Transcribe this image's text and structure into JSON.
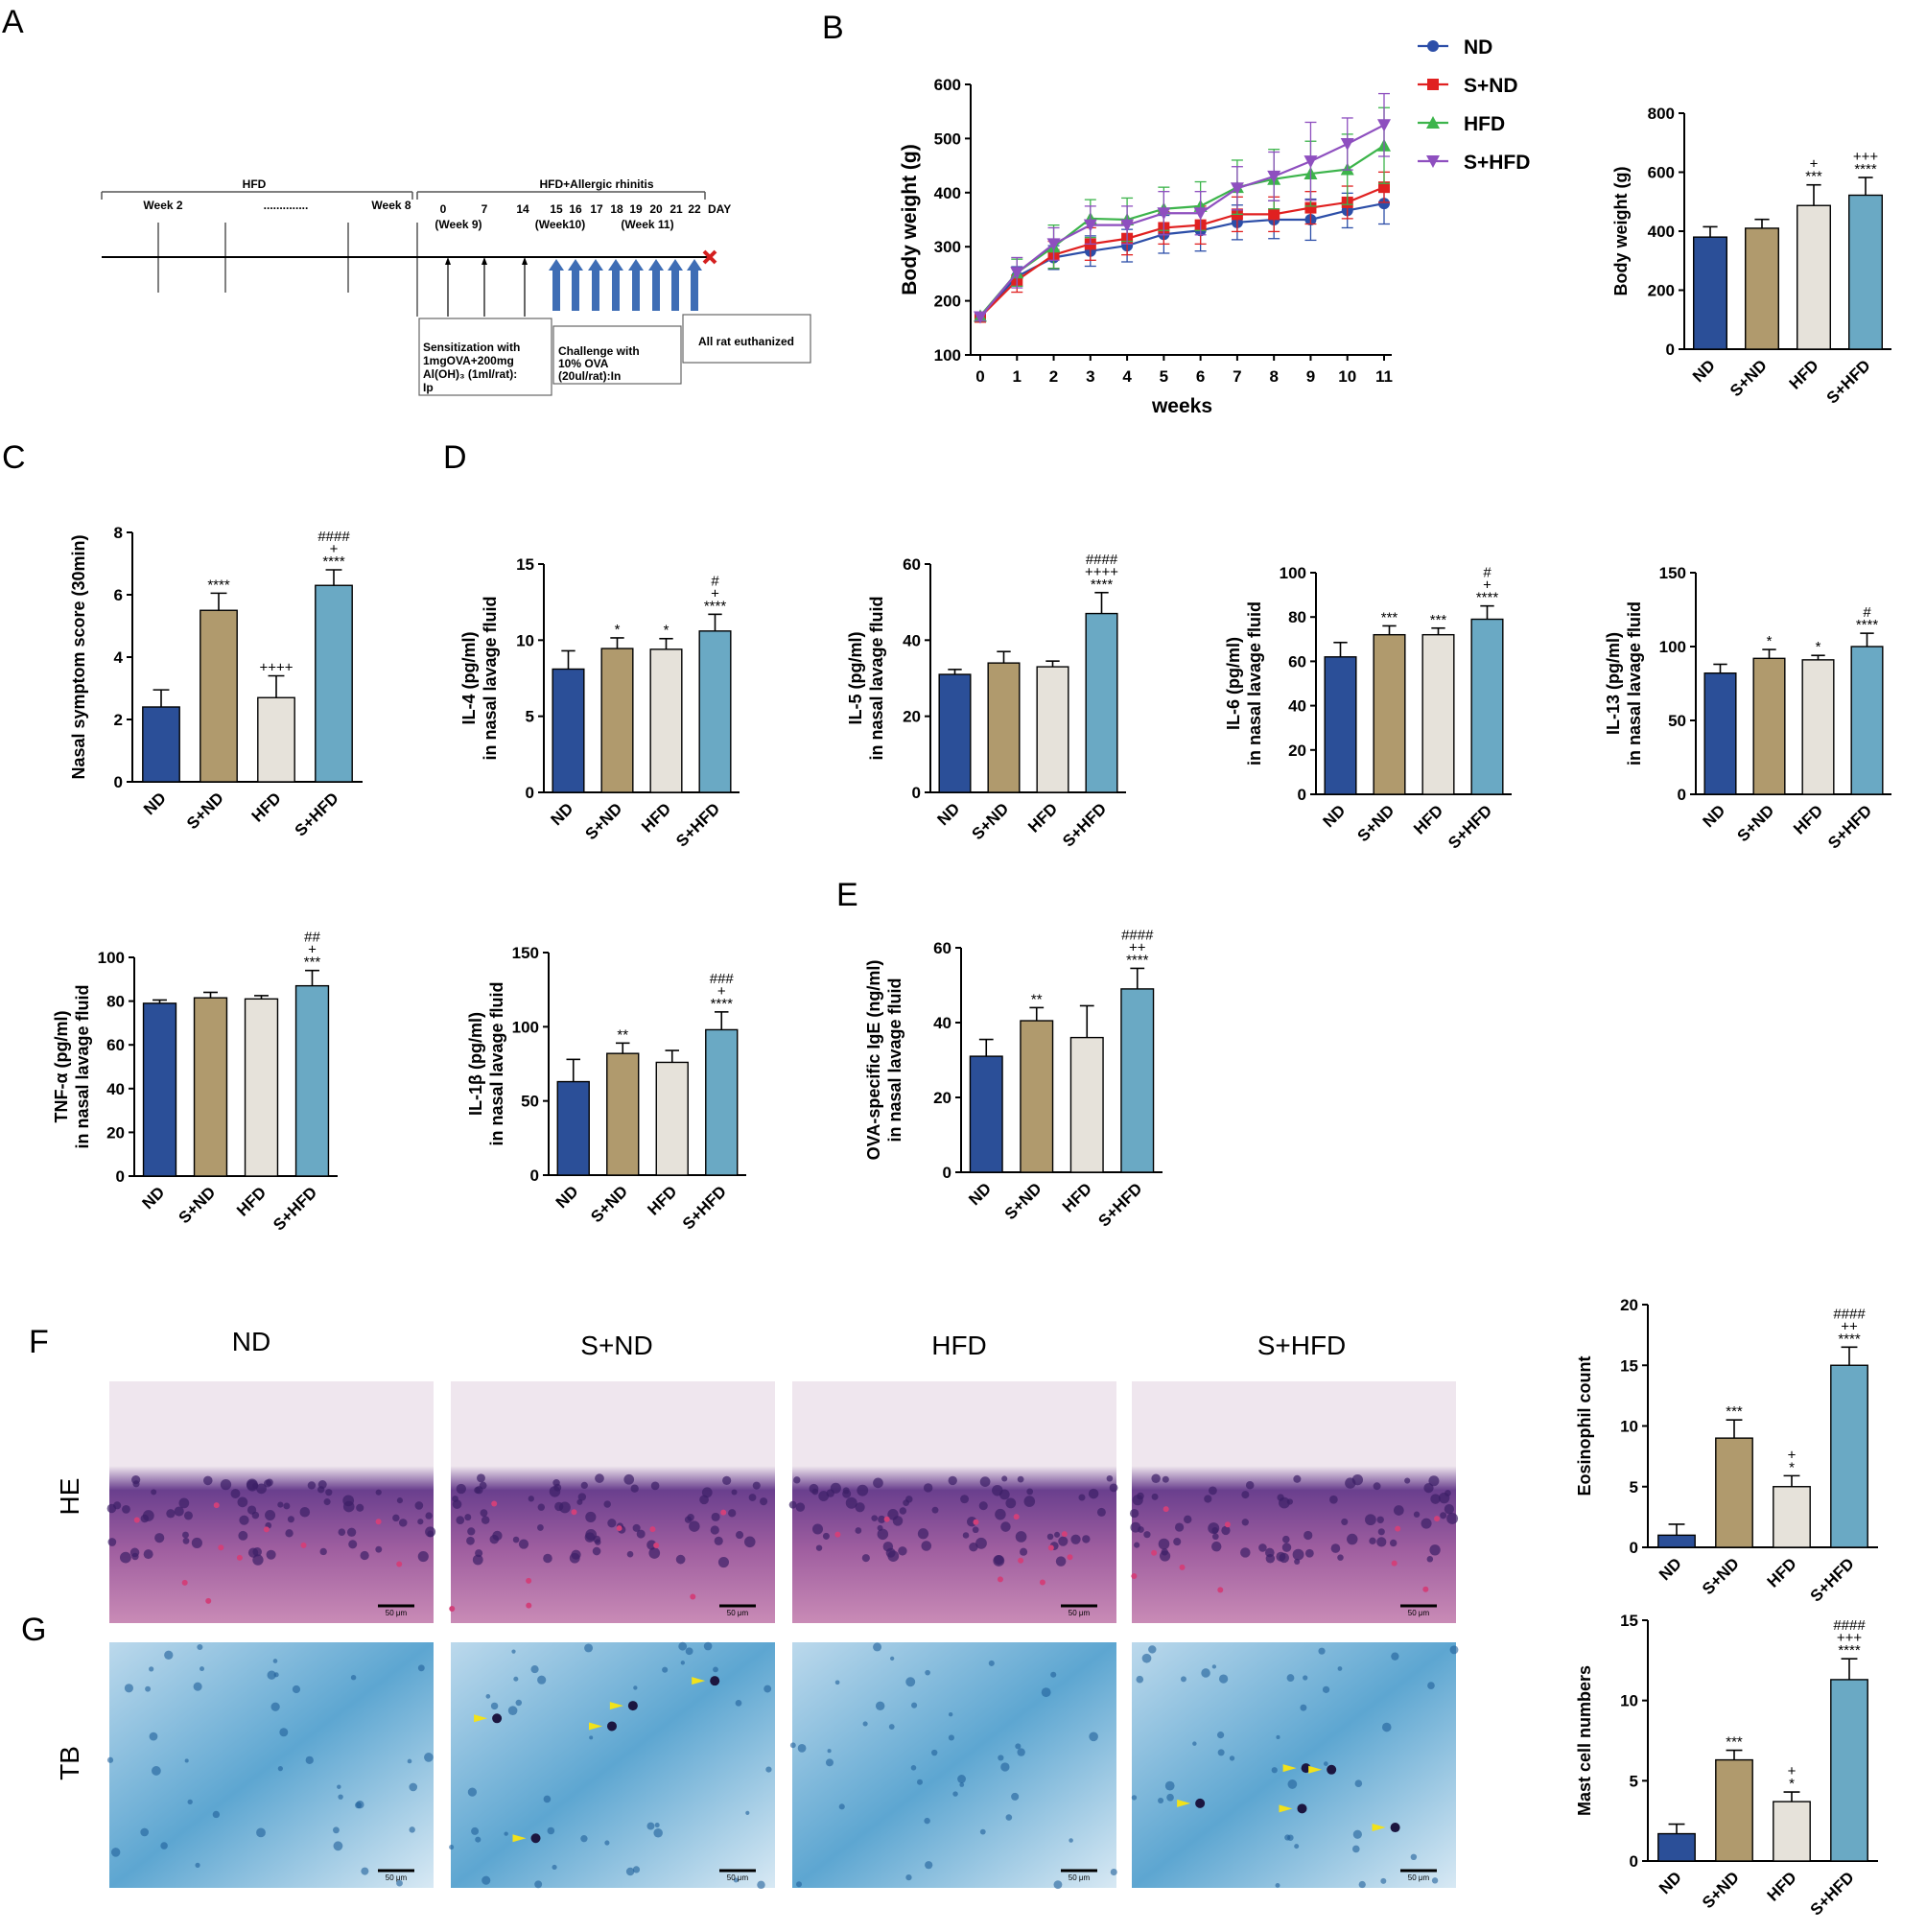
{
  "panel_labels": [
    "A",
    "B",
    "C",
    "D",
    "E",
    "F",
    "G"
  ],
  "colors": {
    "ND": "#2b4f98",
    "S+ND": "#b09a6d",
    "HFD": "#e6e2da",
    "S+HFD": "#6aa9c4",
    "line_ND": "#2c4ea8",
    "line_SND": "#e02020",
    "line_HFD": "#3cb44b",
    "line_SHFD": "#8e4fbf"
  },
  "timeline": {
    "hfd_label": "HFD",
    "hfd_allergic_label": "HFD+Allergic rhinitis",
    "week_labels": [
      "Week 2",
      "..............",
      "Week 8"
    ],
    "day_labels": [
      "0",
      "7",
      "14",
      "15",
      "16",
      "17",
      "18",
      "19",
      "20",
      "21",
      "22"
    ],
    "day_unit": "DAY",
    "period_labels": [
      "(Week 9)",
      "(Week10)",
      "(Week 11)"
    ],
    "sensitization_lines": [
      "Sensitization with",
      "1mgOVA+200mg",
      "Al(OH)₃   (1ml/rat):",
      "Ip"
    ],
    "challenge_lines": [
      "Challenge with",
      "10% OVA",
      "(20ul/rat):In"
    ],
    "euthanize_label": "All rat euthanized"
  },
  "chart_data": [
    {
      "id": "B_line",
      "type": "line",
      "xlabel": "weeks",
      "ylabel": "Body weight (g)",
      "x": [
        0,
        1,
        2,
        3,
        4,
        5,
        6,
        7,
        8,
        9,
        10,
        11
      ],
      "ylim": [
        100,
        600
      ],
      "yticks": [
        100,
        200,
        300,
        400,
        500,
        600
      ],
      "series": [
        {
          "name": "ND",
          "values": [
            170,
            245,
            280,
            292,
            302,
            323,
            330,
            345,
            350,
            350,
            367,
            380
          ],
          "err": [
            7,
            18,
            22,
            28,
            30,
            35,
            38,
            32,
            35,
            38,
            32,
            38
          ]
        },
        {
          "name": "S+ND",
          "values": [
            170,
            238,
            285,
            305,
            315,
            335,
            340,
            360,
            360,
            372,
            382,
            410
          ],
          "err": [
            7,
            22,
            25,
            30,
            30,
            30,
            35,
            32,
            32,
            30,
            30,
            28
          ]
        },
        {
          "name": "HFD",
          "values": [
            172,
            252,
            300,
            352,
            350,
            370,
            375,
            410,
            425,
            435,
            443,
            487
          ],
          "err": [
            7,
            25,
            40,
            35,
            40,
            40,
            45,
            50,
            55,
            60,
            65,
            70
          ]
        },
        {
          "name": "S+HFD",
          "values": [
            170,
            252,
            305,
            340,
            340,
            362,
            362,
            408,
            430,
            458,
            490,
            525
          ],
          "err": [
            7,
            28,
            30,
            35,
            35,
            40,
            40,
            40,
            45,
            72,
            48,
            58
          ]
        }
      ]
    },
    {
      "id": "B_bar",
      "type": "bar",
      "ylabel": "Body weight (g)",
      "categories": [
        "ND",
        "S+ND",
        "HFD",
        "S+HFD"
      ],
      "values": [
        380,
        410,
        487,
        522
      ],
      "err": [
        35,
        30,
        70,
        60
      ],
      "ylim": [
        0,
        800
      ],
      "yticks": [
        0,
        200,
        400,
        600,
        800
      ],
      "sig": [
        [],
        [],
        [
          "+",
          "***"
        ],
        [
          "+++",
          "****"
        ]
      ]
    },
    {
      "id": "C_bar",
      "type": "bar",
      "ylabel": "Nasal symptom score (30min)",
      "categories": [
        "ND",
        "S+ND",
        "HFD",
        "S+HFD"
      ],
      "values": [
        2.4,
        5.5,
        2.7,
        6.3
      ],
      "err": [
        0.55,
        0.55,
        0.7,
        0.5
      ],
      "ylim": [
        0,
        8
      ],
      "yticks": [
        0,
        2,
        4,
        6,
        8
      ],
      "sig": [
        [],
        [
          "****"
        ],
        [
          "++++"
        ],
        [
          "####",
          "+",
          "****"
        ]
      ]
    },
    {
      "id": "D_IL4",
      "type": "bar",
      "ylabel_lines": [
        "IL-4 (pg/ml)",
        "in nasal lavage fluid"
      ],
      "categories": [
        "ND",
        "S+ND",
        "HFD",
        "S+HFD"
      ],
      "values": [
        8.1,
        9.45,
        9.4,
        10.6
      ],
      "err": [
        1.2,
        0.7,
        0.7,
        1.1
      ],
      "ylim": [
        0,
        15
      ],
      "yticks": [
        0,
        5,
        10,
        15
      ],
      "sig": [
        [],
        [
          "*"
        ],
        [
          "*"
        ],
        [
          "#",
          "+",
          "****"
        ]
      ]
    },
    {
      "id": "D_IL5",
      "type": "bar",
      "ylabel_lines": [
        "IL-5 (pg/ml)",
        "in nasal lavage fluid"
      ],
      "categories": [
        "ND",
        "S+ND",
        "HFD",
        "S+HFD"
      ],
      "values": [
        31,
        34,
        33,
        47
      ],
      "err": [
        1.3,
        3,
        1.5,
        5.5
      ],
      "ylim": [
        0,
        60
      ],
      "yticks": [
        0,
        20,
        40,
        60
      ],
      "sig": [
        [],
        [],
        [],
        [
          "####",
          "++++",
          "****"
        ]
      ]
    },
    {
      "id": "D_IL6",
      "type": "bar",
      "ylabel_lines": [
        "IL-6 (pg/ml)",
        "in nasal lavage fluid"
      ],
      "categories": [
        "ND",
        "S+ND",
        "HFD",
        "S+HFD"
      ],
      "values": [
        62,
        72,
        72,
        79
      ],
      "err": [
        6.5,
        4,
        3,
        6
      ],
      "ylim": [
        0,
        100
      ],
      "yticks": [
        0,
        20,
        40,
        60,
        80,
        100
      ],
      "sig": [
        [],
        [
          "***"
        ],
        [
          "***"
        ],
        [
          "#",
          "+",
          "****"
        ]
      ]
    },
    {
      "id": "D_IL13",
      "type": "bar",
      "ylabel_lines": [
        "IL-13 (pg/ml)",
        "in nasal lavage fluid"
      ],
      "categories": [
        "ND",
        "S+ND",
        "HFD",
        "S+HFD"
      ],
      "values": [
        82,
        92,
        91,
        100
      ],
      "err": [
        6,
        6,
        3,
        9
      ],
      "ylim": [
        0,
        150
      ],
      "yticks": [
        0,
        50,
        100,
        150
      ],
      "sig": [
        [],
        [
          "*"
        ],
        [
          "*"
        ],
        [
          "#",
          "****"
        ]
      ]
    },
    {
      "id": "D_TNF",
      "type": "bar",
      "ylabel_lines": [
        "TNF-α (pg/ml)",
        "in nasal lavage fluid"
      ],
      "categories": [
        "ND",
        "S+ND",
        "HFD",
        "S+HFD"
      ],
      "values": [
        79,
        81.5,
        81,
        87
      ],
      "err": [
        1.5,
        2.5,
        1.5,
        7
      ],
      "ylim": [
        0,
        100
      ],
      "yticks": [
        0,
        20,
        40,
        60,
        80,
        100
      ],
      "sig": [
        [],
        [],
        [],
        [
          "##",
          "+",
          "***"
        ]
      ]
    },
    {
      "id": "D_IL1b",
      "type": "bar",
      "ylabel_lines": [
        "IL-1β (pg/ml)",
        "in nasal lavage fluid"
      ],
      "categories": [
        "ND",
        "S+ND",
        "HFD",
        "S+HFD"
      ],
      "values": [
        63,
        82,
        76,
        98
      ],
      "err": [
        15,
        7,
        8,
        12
      ],
      "ylim": [
        0,
        150
      ],
      "yticks": [
        0,
        50,
        100,
        150
      ],
      "sig": [
        [],
        [
          "**"
        ],
        [],
        [
          "###",
          "+",
          "****"
        ]
      ]
    },
    {
      "id": "E_IgE",
      "type": "bar",
      "ylabel_lines": [
        "OVA-specific IgE (ng/ml)",
        "in nasal lavage fluid"
      ],
      "categories": [
        "ND",
        "S+ND",
        "HFD",
        "S+HFD"
      ],
      "values": [
        31,
        40.5,
        36,
        49
      ],
      "err": [
        4.5,
        3.5,
        8.5,
        5.5
      ],
      "ylim": [
        0,
        60
      ],
      "yticks": [
        0,
        20,
        40,
        60
      ],
      "sig": [
        [],
        [
          "**"
        ],
        [],
        [
          "####",
          "++",
          "****"
        ]
      ]
    },
    {
      "id": "F_eos",
      "type": "bar",
      "ylabel": "Eosinophil count",
      "categories": [
        "ND",
        "S+ND",
        "HFD",
        "S+HFD"
      ],
      "values": [
        1,
        9,
        5,
        15
      ],
      "err": [
        0.9,
        1.5,
        0.9,
        1.5
      ],
      "ylim": [
        0,
        20
      ],
      "yticks": [
        0,
        5,
        10,
        15,
        20
      ],
      "sig": [
        [],
        [
          "***"
        ],
        [
          "+",
          "*"
        ],
        [
          "####",
          "++",
          "****"
        ]
      ]
    },
    {
      "id": "G_mast",
      "type": "bar",
      "ylabel": "Mast cell numbers",
      "categories": [
        "ND",
        "S+ND",
        "HFD",
        "S+HFD"
      ],
      "values": [
        1.7,
        6.3,
        3.7,
        11.3
      ],
      "err": [
        0.6,
        0.6,
        0.6,
        1.3
      ],
      "ylim": [
        0,
        15
      ],
      "yticks": [
        0,
        5,
        10,
        15
      ],
      "sig": [
        [],
        [
          "***"
        ],
        [
          "+",
          "*"
        ],
        [
          "####",
          "+++",
          "****"
        ]
      ]
    }
  ],
  "micrographs": {
    "columns": [
      "ND",
      "S+ND",
      "HFD",
      "S+HFD"
    ],
    "rows": [
      "HE",
      "TB"
    ],
    "scale_bar": "50 μm"
  }
}
